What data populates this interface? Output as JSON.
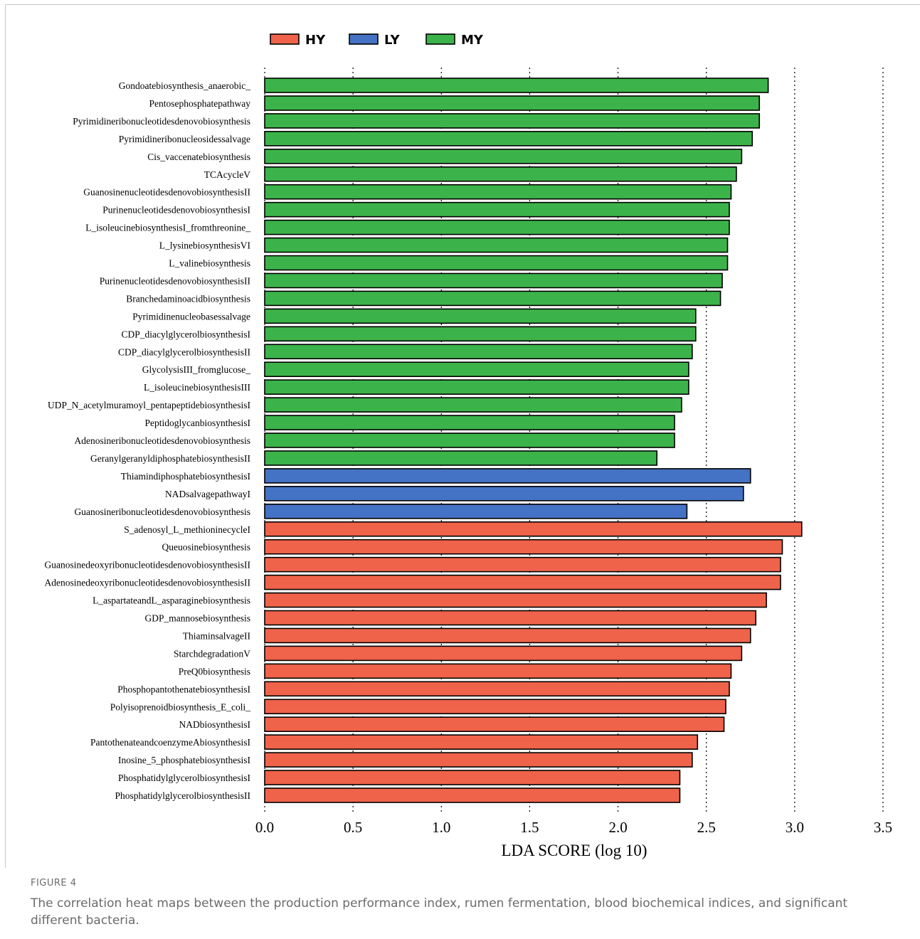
{
  "figure": {
    "label": "FIGURE 4",
    "caption": "The correlation heat maps between the production performance index, rumen fermentation, blood biochemical indices, and significant different bacteria."
  },
  "colors": {
    "HY": "#ef634a",
    "LY": "#4472c4",
    "MY": "#3cb34a"
  },
  "chart_data": {
    "type": "bar",
    "orientation": "horizontal",
    "xlabel": "LDA SCORE (log 10)",
    "ylabel": "",
    "xlim": [
      0,
      3.5
    ],
    "xticks": [
      0.0,
      0.5,
      1.0,
      1.5,
      2.0,
      2.5,
      3.0,
      3.5
    ],
    "xtick_labels": [
      "0.0",
      "0.5",
      "1.0",
      "1.5",
      "2.0",
      "2.5",
      "3.0",
      "3.5"
    ],
    "grid": "vertical dotted",
    "legend": {
      "position": "top-left",
      "entries": [
        {
          "name": "HY",
          "color": "#ef634a"
        },
        {
          "name": "LY",
          "color": "#4472c4"
        },
        {
          "name": "MY",
          "color": "#3cb34a"
        }
      ]
    },
    "bars": [
      {
        "label": "Gondoatebiosynthesis_anaerobic_",
        "value": 2.85,
        "group": "MY"
      },
      {
        "label": "Pentosephosphatepathway",
        "value": 2.8,
        "group": "MY"
      },
      {
        "label": "Pyrimidineribonucleotidesdenovobiosynthesis",
        "value": 2.8,
        "group": "MY"
      },
      {
        "label": "Pyrimidineribonucleosidessalvage",
        "value": 2.76,
        "group": "MY"
      },
      {
        "label": "Cis_vaccenatebiosynthesis",
        "value": 2.7,
        "group": "MY"
      },
      {
        "label": "TCAcycleV",
        "value": 2.67,
        "group": "MY"
      },
      {
        "label": "GuanosinenucleotidesdenovobiosynthesisII",
        "value": 2.64,
        "group": "MY"
      },
      {
        "label": "PurinenucleotidesdenovobiosynthesisI",
        "value": 2.63,
        "group": "MY"
      },
      {
        "label": "L_isoleucinebiosynthesisI_fromthreonine_",
        "value": 2.63,
        "group": "MY"
      },
      {
        "label": "L_lysinebiosynthesisVI",
        "value": 2.62,
        "group": "MY"
      },
      {
        "label": "L_valinebiosynthesis",
        "value": 2.62,
        "group": "MY"
      },
      {
        "label": "PurinenucleotidesdenovobiosynthesisII",
        "value": 2.59,
        "group": "MY"
      },
      {
        "label": "Branchedaminoacidbiosynthesis",
        "value": 2.58,
        "group": "MY"
      },
      {
        "label": "Pyrimidinenucleobasessalvage",
        "value": 2.44,
        "group": "MY"
      },
      {
        "label": "CDP_diacylglycerolbiosynthesisI",
        "value": 2.44,
        "group": "MY"
      },
      {
        "label": "CDP_diacylglycerolbiosynthesisII",
        "value": 2.42,
        "group": "MY"
      },
      {
        "label": "GlycolysisIII_fromglucose_",
        "value": 2.4,
        "group": "MY"
      },
      {
        "label": "L_isoleucinebiosynthesisIII",
        "value": 2.4,
        "group": "MY"
      },
      {
        "label": "UDP_N_acetylmuramoyl_pentapeptidebiosynthesisI",
        "value": 2.36,
        "group": "MY"
      },
      {
        "label": "PeptidoglycanbiosynthesisI",
        "value": 2.32,
        "group": "MY"
      },
      {
        "label": "Adenosineribonucleotidesdenovobiosynthesis",
        "value": 2.32,
        "group": "MY"
      },
      {
        "label": "GeranylgeranyldiphosphatebiosynthesisII",
        "value": 2.22,
        "group": "MY"
      },
      {
        "label": "ThiamindiphosphatebiosynthesisI",
        "value": 2.75,
        "group": "LY"
      },
      {
        "label": "NADsalvagepathwayI",
        "value": 2.71,
        "group": "LY"
      },
      {
        "label": "Guanosineribonucleotidesdenovobiosynthesis",
        "value": 2.39,
        "group": "LY"
      },
      {
        "label": "S_adenosyl_L_methioninecycleI",
        "value": 3.04,
        "group": "HY"
      },
      {
        "label": "Queuosinebiosynthesis",
        "value": 2.93,
        "group": "HY"
      },
      {
        "label": "GuanosinedeoxyribonucleotidesdenovobiosynthesisII",
        "value": 2.92,
        "group": "HY"
      },
      {
        "label": "AdenosinedeoxyribonucleotidesdenovobiosynthesisII",
        "value": 2.92,
        "group": "HY"
      },
      {
        "label": "L_aspartateandL_asparaginebiosynthesis",
        "value": 2.84,
        "group": "HY"
      },
      {
        "label": "GDP_mannosebiosynthesis",
        "value": 2.78,
        "group": "HY"
      },
      {
        "label": "ThiaminsalvageII",
        "value": 2.75,
        "group": "HY"
      },
      {
        "label": "StarchdegradationV",
        "value": 2.7,
        "group": "HY"
      },
      {
        "label": "PreQ0biosynthesis",
        "value": 2.64,
        "group": "HY"
      },
      {
        "label": "PhosphopantothenatebiosynthesisI",
        "value": 2.63,
        "group": "HY"
      },
      {
        "label": "Polyisoprenoidbiosynthesis_E_coli_",
        "value": 2.61,
        "group": "HY"
      },
      {
        "label": "NADbiosynthesisI",
        "value": 2.6,
        "group": "HY"
      },
      {
        "label": "PantothenateandcoenzymeAbiosynthesisI",
        "value": 2.45,
        "group": "HY"
      },
      {
        "label": "Inosine_5_phosphatebiosynthesisI",
        "value": 2.42,
        "group": "HY"
      },
      {
        "label": "PhosphatidylglycerolbiosynthesisI",
        "value": 2.35,
        "group": "HY"
      },
      {
        "label": "PhosphatidylglycerolbiosynthesisII",
        "value": 2.35,
        "group": "HY"
      }
    ]
  }
}
